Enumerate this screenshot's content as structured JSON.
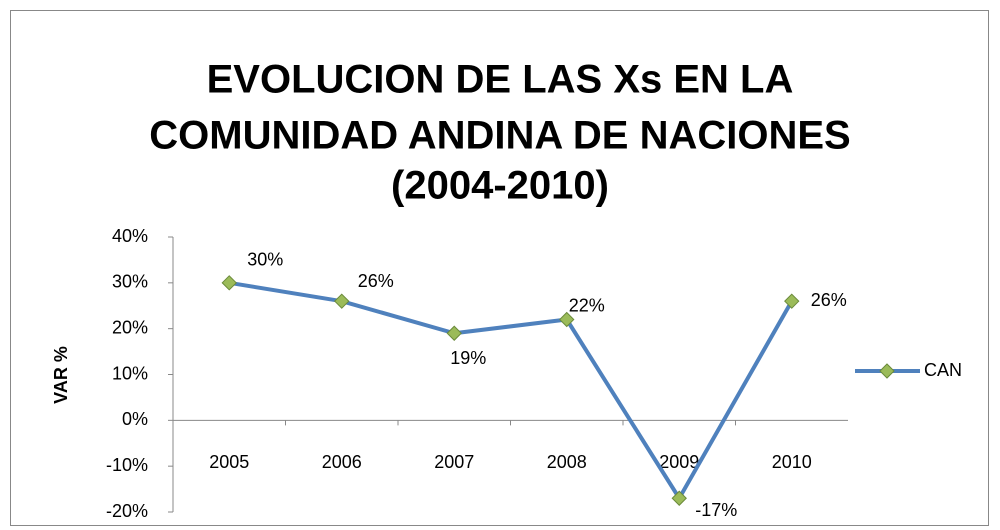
{
  "chart_data": {
    "type": "line",
    "title": [
      "EVOLUCION DE LAS Xs EN LA",
      "COMUNIDAD ANDINA DE NACIONES",
      "(2004-2010)"
    ],
    "y_label": "VAR %",
    "categories": [
      "2005",
      "2006",
      "2007",
      "2008",
      "2009",
      "2010"
    ],
    "series": [
      {
        "name": "CAN",
        "color": "#4f81bd",
        "marker_color": "#9bbb59",
        "values": [
          30,
          26,
          19,
          22,
          -17,
          26
        ],
        "value_labels": [
          "30%",
          "26%",
          "19%",
          "22%",
          "-17%",
          "26%"
        ]
      }
    ],
    "ylim": [
      -20,
      40
    ],
    "yticks": [
      {
        "value": -20,
        "label": "-20%"
      },
      {
        "value": -10,
        "label": "-10%"
      },
      {
        "value": 0,
        "label": "0%"
      },
      {
        "value": 10,
        "label": "10%"
      },
      {
        "value": 20,
        "label": "20%"
      },
      {
        "value": 30,
        "label": "30%"
      },
      {
        "value": 40,
        "label": "40%"
      }
    ],
    "legend": "right",
    "grid": false
  }
}
